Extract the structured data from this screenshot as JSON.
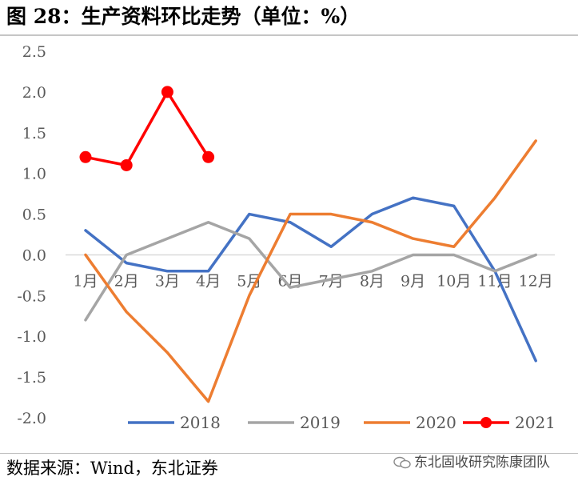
{
  "header": {
    "figure_title": "图 28：生产资料环比走势（单位：%）"
  },
  "footer": {
    "source": "数据来源：Wind，东北证券",
    "watermark": "东北固收研究陈康团队"
  },
  "chart_data": {
    "type": "line",
    "title": "生产资料环比走势（单位：%）",
    "unit": "%",
    "categories": [
      "1月",
      "2月",
      "3月",
      "4月",
      "5月",
      "6月",
      "7月",
      "8月",
      "9月",
      "10月",
      "11月",
      "12月"
    ],
    "ylim": [
      -2.0,
      2.5
    ],
    "yticks": [
      2.5,
      2.0,
      1.5,
      1.0,
      0.5,
      0.0,
      -0.5,
      -1.0,
      -1.5,
      -2.0
    ],
    "ytick_labels": [
      "2.5",
      "2.0",
      "1.5",
      "1.0",
      "0.5",
      "0.0",
      "-0.5",
      "-1.0",
      "-1.5",
      "-2.0"
    ],
    "grid": false,
    "legend_position": "bottom",
    "series": [
      {
        "name": "2018",
        "color": "#4472c4",
        "marker": false,
        "values": [
          0.3,
          -0.1,
          -0.2,
          -0.2,
          0.5,
          0.4,
          0.1,
          0.5,
          0.7,
          0.6,
          -0.2,
          -1.3
        ]
      },
      {
        "name": "2019",
        "color": "#a5a5a5",
        "marker": false,
        "values": [
          -0.8,
          0.0,
          0.2,
          0.4,
          0.2,
          -0.4,
          -0.3,
          -0.2,
          0.0,
          0.0,
          -0.2,
          0.0
        ]
      },
      {
        "name": "2020",
        "color": "#ed7d31",
        "marker": false,
        "values": [
          0.0,
          -0.7,
          -1.2,
          -1.8,
          -0.5,
          0.5,
          0.5,
          0.4,
          0.2,
          0.1,
          0.7,
          1.4
        ]
      },
      {
        "name": "2021",
        "color": "#ff0000",
        "marker": true,
        "values": [
          1.2,
          1.1,
          2.0,
          1.2,
          null,
          null,
          null,
          null,
          null,
          null,
          null,
          null
        ]
      }
    ]
  }
}
